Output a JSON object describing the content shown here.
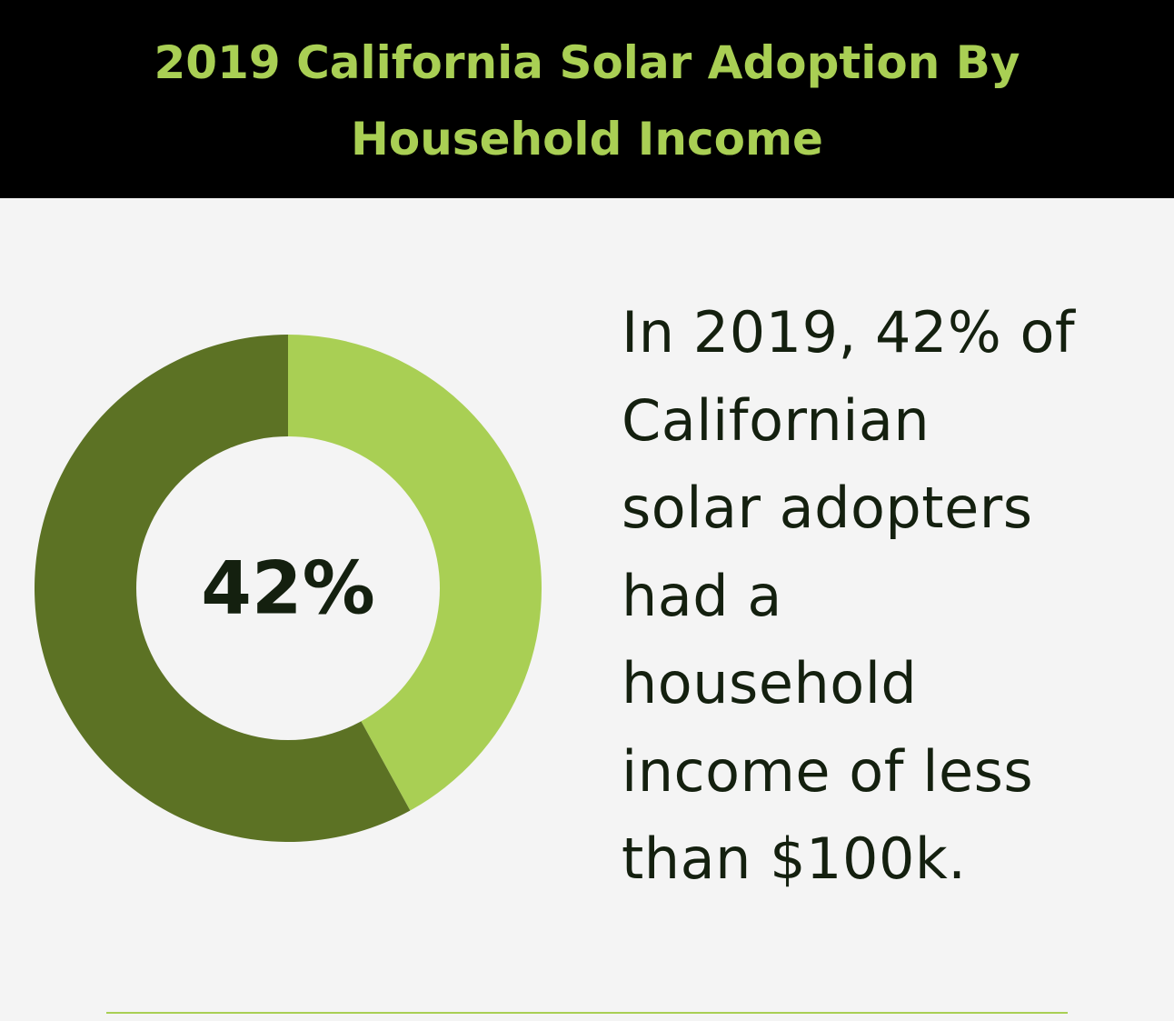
{
  "colors": {
    "background": "#f4f4f4",
    "header_background": "#000000",
    "title_text": "#a9cf54",
    "highlight": "#a9cf54",
    "remainder": "#5c7224",
    "dark_text": "#14200f",
    "rule": "#a9cf54"
  },
  "chart_data": {
    "type": "pie",
    "title": "2019 California Solar Adoption By Household Income",
    "categories": [
      "",
      ""
    ],
    "values": [
      42,
      58
    ],
    "unit": "%",
    "center_label": "42%"
  },
  "caption": {
    "lines": [
      "In 2019, 42% of",
      "Californian",
      "solar adopters",
      "had a",
      "household",
      "income of less",
      "than $100k."
    ]
  }
}
